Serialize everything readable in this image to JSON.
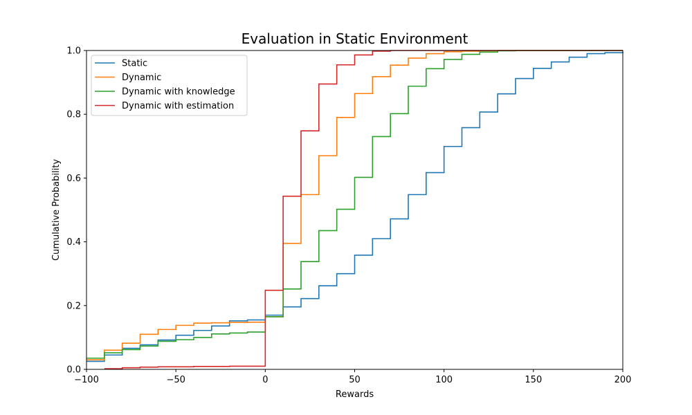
{
  "chart_data": {
    "type": "line",
    "step": true,
    "title": "Evaluation in Static Environment",
    "xlabel": "Rewards",
    "ylabel": "Cumulative Probability",
    "xlim": [
      -100,
      200
    ],
    "ylim": [
      0,
      1.0
    ],
    "xticks": [
      -100,
      -50,
      0,
      50,
      100,
      150,
      200
    ],
    "xtick_labels": [
      "−100",
      "−50",
      "0",
      "50",
      "100",
      "150",
      "200"
    ],
    "yticks": [
      0,
      0.2,
      0.4,
      0.6,
      0.8,
      1.0
    ],
    "ytick_labels": [
      "0.0",
      "0.2",
      "0.4",
      "0.6",
      "0.8",
      "1.0"
    ],
    "grid": false,
    "legend_position": "top-left",
    "series": [
      {
        "name": "Static",
        "color": "#1f77b4",
        "x": [
          -100,
          -90,
          -80,
          -70,
          -60,
          -50,
          -40,
          -30,
          -20,
          -10,
          0,
          10,
          20,
          30,
          40,
          50,
          60,
          70,
          80,
          90,
          100,
          110,
          120,
          130,
          140,
          150,
          160,
          170,
          180,
          190,
          200
        ],
        "y": [
          0.025,
          0.045,
          0.066,
          0.077,
          0.092,
          0.107,
          0.122,
          0.136,
          0.152,
          0.155,
          0.17,
          0.196,
          0.222,
          0.262,
          0.3,
          0.358,
          0.41,
          0.472,
          0.548,
          0.617,
          0.699,
          0.758,
          0.807,
          0.864,
          0.912,
          0.944,
          0.964,
          0.979,
          0.99,
          0.993,
          0.996
        ]
      },
      {
        "name": "Dynamic",
        "color": "#ff7f0e",
        "x": [
          -100,
          -90,
          -80,
          -70,
          -60,
          -50,
          -40,
          -30,
          -20,
          -10,
          0,
          10,
          20,
          30,
          40,
          50,
          60,
          70,
          80,
          90,
          100,
          110,
          120,
          130,
          140,
          150,
          160
        ],
        "y": [
          0.03,
          0.06,
          0.082,
          0.11,
          0.125,
          0.138,
          0.145,
          0.146,
          0.147,
          0.148,
          0.165,
          0.395,
          0.548,
          0.67,
          0.79,
          0.865,
          0.918,
          0.954,
          0.976,
          0.99,
          0.996,
          0.998,
          0.999,
          1.0,
          1.0,
          1.0,
          1.0
        ]
      },
      {
        "name": "Dynamic with knowledge",
        "color": "#2ca02c",
        "x": [
          -100,
          -90,
          -80,
          -70,
          -60,
          -50,
          -40,
          -30,
          -20,
          -10,
          0,
          10,
          20,
          30,
          40,
          50,
          60,
          70,
          80,
          90,
          100,
          110,
          120,
          130,
          140
        ],
        "y": [
          0.035,
          0.052,
          0.062,
          0.073,
          0.088,
          0.093,
          0.1,
          0.111,
          0.114,
          0.117,
          0.165,
          0.252,
          0.338,
          0.435,
          0.502,
          0.602,
          0.73,
          0.802,
          0.888,
          0.943,
          0.972,
          0.988,
          0.995,
          0.999,
          1.0
        ]
      },
      {
        "name": "Dynamic with estimation",
        "color": "#d62728",
        "x": [
          -90,
          -80,
          -70,
          -60,
          -50,
          -40,
          -30,
          -20,
          -10,
          0,
          10,
          20,
          30,
          40,
          50,
          60,
          70,
          80
        ],
        "y": [
          0.002,
          0.005,
          0.007,
          0.008,
          0.008,
          0.009,
          0.009,
          0.01,
          0.01,
          0.248,
          0.543,
          0.748,
          0.895,
          0.955,
          0.986,
          0.998,
          1.0,
          1.0
        ]
      }
    ]
  }
}
